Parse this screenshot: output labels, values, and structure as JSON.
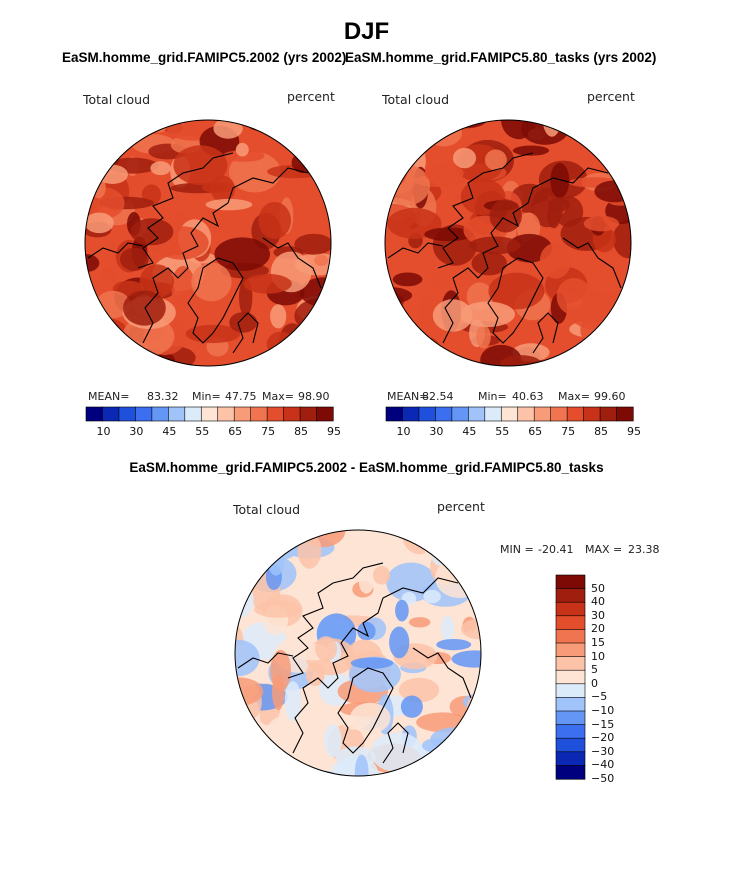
{
  "figure": {
    "season": "DJF",
    "top_left_title": "EaSM.homme_grid.FAMIPC5.2002 (yrs 2002)",
    "top_right_title": "EaSM.homme_grid.FAMIPC5.80_tasks (yrs 2002)",
    "bottom_title": "EaSM.homme_grid.FAMIPC5.2002 - EaSM.homme_grid.FAMIPC5.80_tasks"
  },
  "colors": {
    "seq_scale": [
      "#00007f",
      "#0a28b4",
      "#1e50dc",
      "#3c6ef0",
      "#6496f5",
      "#a0c3fa",
      "#dcebfa",
      "#fde4d4",
      "#fcc3a8",
      "#f89b78",
      "#f0744f",
      "#e44e2d",
      "#c83218",
      "#a01e0e",
      "#7d0a05"
    ],
    "diff_scale": [
      "#00007f",
      "#0a28b4",
      "#1e50dc",
      "#3c6ef0",
      "#6496f5",
      "#a0c3fa",
      "#dcebfa",
      "#fde4d4",
      "#fcc3a8",
      "#f89b78",
      "#f0744f",
      "#e44e2d",
      "#c83218",
      "#a01e0e",
      "#7d0a05"
    ]
  },
  "chart_data": [
    {
      "type": "heatmap",
      "projection": "north-polar-stereographic",
      "title": "EaSM.homme_grid.FAMIPC5.2002 (yrs 2002)",
      "variable": "Total cloud",
      "units": "percent",
      "stats": {
        "mean_label": "MEAN=",
        "mean": "83.32",
        "min_label": "Min=",
        "min": "47.75",
        "max_label": "Max=",
        "max": "98.90"
      },
      "colorbar_ticks": [
        "10",
        "30",
        "45",
        "55",
        "65",
        "75",
        "85",
        "95"
      ],
      "colorbar_levels": [
        10,
        20,
        30,
        40,
        45,
        50,
        55,
        60,
        65,
        70,
        75,
        80,
        85,
        90,
        95
      ]
    },
    {
      "type": "heatmap",
      "projection": "north-polar-stereographic",
      "title": "EaSM.homme_grid.FAMIPC5.80_tasks (yrs 2002)",
      "variable": "Total cloud",
      "units": "percent",
      "stats": {
        "mean_label": "MEAN=",
        "mean": "82.54",
        "min_label": "Min=",
        "min": "40.63",
        "max_label": "Max=",
        "max": "99.60"
      },
      "colorbar_ticks": [
        "10",
        "30",
        "45",
        "55",
        "65",
        "75",
        "85",
        "95"
      ],
      "colorbar_levels": [
        10,
        20,
        30,
        40,
        45,
        50,
        55,
        60,
        65,
        70,
        75,
        80,
        85,
        90,
        95
      ]
    },
    {
      "type": "heatmap",
      "projection": "north-polar-stereographic",
      "title": "EaSM.homme_grid.FAMIPC5.2002 - EaSM.homme_grid.FAMIPC5.80_tasks",
      "variable": "Total cloud",
      "units": "percent",
      "stats": {
        "min_label": "MIN =",
        "min": "-20.41",
        "max_label": "MAX =",
        "max": "23.38"
      },
      "colorbar_ticks": [
        "50",
        "40",
        "30",
        "20",
        "15",
        "10",
        "5",
        "0",
        "−5",
        "−10",
        "−15",
        "−20",
        "−30",
        "−40",
        "−50"
      ],
      "colorbar_levels": [
        -50,
        -40,
        -30,
        -20,
        -15,
        -10,
        -5,
        0,
        5,
        10,
        15,
        20,
        30,
        40,
        50
      ]
    }
  ]
}
